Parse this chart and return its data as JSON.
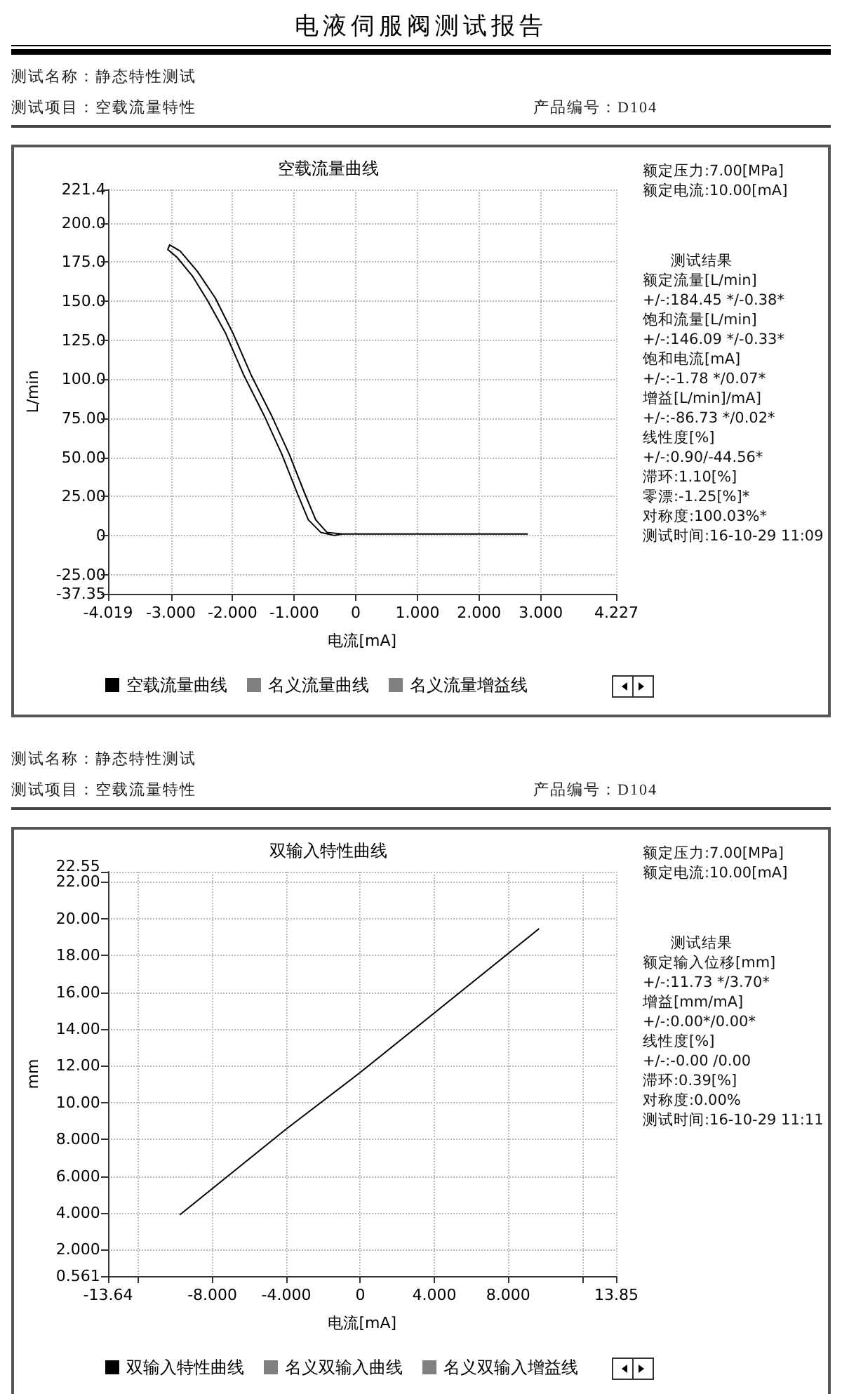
{
  "chart_data": [
    {
      "type": "line",
      "title": "空载流量曲线",
      "xlabel": "电流[mA]",
      "ylabel": "L/min",
      "annotations": [
        "电液伺服阀测试报告",
        "测试名称：静态特性测试",
        "测试项目：空载流量特性",
        "产品编号：D104",
        "额定压力:7.00[MPa]",
        "额定电流:10.00[mA]",
        "测试结果",
        "额定流量[L/min]",
        "+/-:184.45 */-0.38*",
        "饱和流量[L/min]",
        "+/-:146.09 */-0.33*",
        "饱和电流[mA]",
        "+/-:-1.78 */0.07*",
        "增益[L/min]/mA]",
        "+/-:-86.73 */0.02*",
        "线性度[%]",
        "+/-:0.90/-44.56*",
        "滞环:1.10[%]",
        "零漂:-1.25[%]*",
        "对称度:100.03%*",
        "测试时间:16-10-29 11:09"
      ],
      "xlim": [
        -4.019,
        4.227
      ],
      "xticks": [
        -4.019,
        {
          "value": -3,
          "label": "-3.000"
        },
        {
          "value": -2,
          "label": "-2.000"
        },
        {
          "value": -1,
          "label": "-1.000"
        },
        0,
        {
          "value": 1,
          "label": "1.000"
        },
        {
          "value": 2,
          "label": "2.000"
        },
        {
          "value": 3,
          "label": "3.000"
        },
        4.227
      ],
      "ylim": [
        -37.35,
        221.4
      ],
      "yticks": [
        -37.35,
        {
          "value": -25,
          "label": "-25.00"
        },
        0,
        {
          "value": 25,
          "label": "25.00"
        },
        {
          "value": 50,
          "label": "50.00"
        },
        {
          "value": 75,
          "label": "75.00"
        },
        {
          "value": 100,
          "label": "100.0"
        },
        {
          "value": 125,
          "label": "125.0"
        },
        {
          "value": 150,
          "label": "150.0"
        },
        {
          "value": 175,
          "label": "175.0"
        },
        {
          "value": 200,
          "label": "200.0"
        },
        221.4
      ],
      "grid": true,
      "legend": "bottom",
      "series": [
        {
          "name": "空载流量曲线",
          "color": "#000000",
          "x": [
            2.79,
            1.5,
            0.5,
            -0.23,
            -0.47,
            -0.65,
            -0.83,
            -1.08,
            -1.37,
            -1.69,
            -2.0,
            -2.28,
            -2.57,
            -2.85,
            -3.02,
            -3.05,
            -2.9,
            -2.65,
            -2.4,
            -2.12,
            -1.81,
            -1.49,
            -1.2,
            -0.95,
            -0.77,
            -0.57,
            -0.35,
            -0.2
          ],
          "values": [
            1,
            1,
            1,
            1,
            2,
            10,
            27,
            52,
            77,
            102,
            130,
            152,
            169,
            182,
            186,
            183,
            178,
            166,
            150,
            130,
            102,
            77,
            52,
            27,
            10,
            2,
            0,
            1
          ]
        },
        {
          "name": "名义流量曲线",
          "color": "#808080"
        },
        {
          "name": "名义流量增益线",
          "color": "#808080"
        }
      ]
    },
    {
      "type": "line",
      "title": "双输入特性曲线",
      "xlabel": "电流[mA]",
      "ylabel": "mm",
      "annotations": [
        "测试名称：静态特性测试",
        "测试项目：空载流量特性",
        "产品编号：D104",
        "额定压力:7.00[MPa]",
        "额定电流:10.00[mA]",
        "测试结果",
        "额定输入位移[mm]",
        "+/-:11.73 */3.70*",
        "增益[mm/mA]",
        "+/-:0.00*/0.00*",
        "线性度[%]",
        "+/-:-0.00 /0.00",
        "滞环:0.39[%]",
        "对称度:0.00%",
        "测试时间:16-10-29 11:11"
      ],
      "xlim": [
        -13.64,
        13.85
      ],
      "xticks": [
        -13.64,
        {
          "value": -12,
          "label": null
        },
        {
          "value": -8,
          "label": "-8.000"
        },
        {
          "value": -4,
          "label": "-4.000"
        },
        0,
        {
          "value": 4,
          "label": "4.000"
        },
        {
          "value": 8,
          "label": "8.000"
        },
        {
          "value": 12,
          "label": null
        },
        13.85
      ],
      "ylim": [
        0.561,
        22.55
      ],
      "yticks": [
        0.561,
        {
          "value": 2,
          "label": "2.000"
        },
        {
          "value": 4,
          "label": "4.000"
        },
        {
          "value": 6,
          "label": "6.000"
        },
        {
          "value": 8,
          "label": "8.000"
        },
        {
          "value": 10,
          "label": "10.00"
        },
        {
          "value": 12,
          "label": "12.00"
        },
        {
          "value": 14,
          "label": "14.00"
        },
        {
          "value": 16,
          "label": "16.00"
        },
        {
          "value": 18,
          "label": "18.00"
        },
        {
          "value": 20,
          "label": "20.00"
        },
        {
          "value": 22,
          "label": "22.00"
        },
        22.55
      ],
      "grid": true,
      "legend": "bottom",
      "series": [
        {
          "name": "双输入特性曲线",
          "color": "#000000",
          "x": [
            -9.76,
            -4.03,
            0,
            4.01,
            9.67
          ],
          "values": [
            3.89,
            8.54,
            11.64,
            14.88,
            19.46
          ]
        },
        {
          "name": "名义双输入曲线",
          "color": "#808080"
        },
        {
          "name": "名义双输入增益线",
          "color": "#808080"
        }
      ]
    }
  ]
}
